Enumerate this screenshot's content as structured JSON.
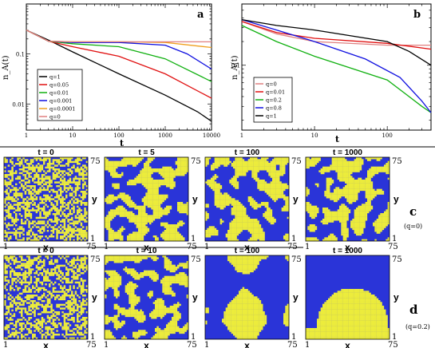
{
  "chart_data": [
    {
      "id": "a",
      "type": "line",
      "panel_letter": "a",
      "xlabel": "t",
      "ylabel": "n_A(t)",
      "xscale": "log",
      "yscale": "log",
      "xlim": [
        1,
        10000
      ],
      "ylim": [
        0.003,
        1
      ],
      "x_ticks": [
        {
          "v": 1,
          "label": "1"
        },
        {
          "v": 10,
          "label": "10"
        },
        {
          "v": 100,
          "label": "100"
        },
        {
          "v": 1000,
          "label": "1000"
        },
        {
          "v": 10000,
          "label": "10000"
        }
      ],
      "y_ticks": [
        {
          "v": 0.01,
          "label": "0.01"
        },
        {
          "v": 0.1,
          "label": "0.1"
        }
      ],
      "legend_position": "bottom-left",
      "series": [
        {
          "name": "q=1",
          "color": "#000000",
          "points": [
            [
              1,
              0.3
            ],
            [
              3,
              0.19
            ],
            [
              10,
              0.11
            ],
            [
              100,
              0.04
            ],
            [
              1000,
              0.015
            ],
            [
              5000,
              0.007
            ],
            [
              10000,
              0.0045
            ]
          ]
        },
        {
          "name": "q=0.05",
          "color": "#e01010",
          "points": [
            [
              1,
              0.3
            ],
            [
              3,
              0.18
            ],
            [
              10,
              0.14
            ],
            [
              100,
              0.09
            ],
            [
              1000,
              0.04
            ],
            [
              10000,
              0.013
            ]
          ]
        },
        {
          "name": "q=0.01",
          "color": "#10b010",
          "points": [
            [
              1,
              0.3
            ],
            [
              3,
              0.18
            ],
            [
              10,
              0.16
            ],
            [
              100,
              0.14
            ],
            [
              1000,
              0.08
            ],
            [
              10000,
              0.028
            ]
          ]
        },
        {
          "name": "q=0.001",
          "color": "#1010e0",
          "points": [
            [
              1,
              0.3
            ],
            [
              3,
              0.18
            ],
            [
              10,
              0.17
            ],
            [
              100,
              0.17
            ],
            [
              1000,
              0.15
            ],
            [
              3000,
              0.1
            ],
            [
              10000,
              0.05
            ]
          ]
        },
        {
          "name": "q=0.0001",
          "color": "#f0a020",
          "points": [
            [
              1,
              0.3
            ],
            [
              3,
              0.18
            ],
            [
              10,
              0.175
            ],
            [
              100,
              0.175
            ],
            [
              1000,
              0.17
            ],
            [
              10000,
              0.135
            ]
          ]
        },
        {
          "name": "q=0",
          "color": "#e08080",
          "points": [
            [
              1,
              0.3
            ],
            [
              3,
              0.18
            ],
            [
              10,
              0.175
            ],
            [
              100,
              0.175
            ],
            [
              1000,
              0.175
            ],
            [
              10000,
              0.175
            ]
          ]
        }
      ]
    },
    {
      "id": "b",
      "type": "line",
      "panel_letter": "b",
      "xlabel": "t",
      "ylabel": "n_A(t)",
      "xscale": "log",
      "yscale": "log",
      "xlim": [
        1,
        400
      ],
      "ylim": [
        0.015,
        0.6
      ],
      "x_ticks": [
        {
          "v": 1,
          "label": "1"
        },
        {
          "v": 10,
          "label": "10"
        },
        {
          "v": 100,
          "label": "100"
        }
      ],
      "y_ticks": [
        {
          "v": 0.1,
          "label": "0.1"
        }
      ],
      "legend_position": "bottom-left",
      "series": [
        {
          "name": "q=0",
          "color": "#e08080",
          "points": [
            [
              1,
              0.36
            ],
            [
              3,
              0.25
            ],
            [
              10,
              0.2
            ],
            [
              100,
              0.18
            ],
            [
              400,
              0.18
            ]
          ]
        },
        {
          "name": "q=0.01",
          "color": "#e01010",
          "points": [
            [
              1,
              0.36
            ],
            [
              3,
              0.26
            ],
            [
              10,
              0.22
            ],
            [
              100,
              0.19
            ],
            [
              400,
              0.16
            ]
          ]
        },
        {
          "name": "q=0.2",
          "color": "#10b010",
          "points": [
            [
              1,
              0.32
            ],
            [
              3,
              0.2
            ],
            [
              10,
              0.13
            ],
            [
              100,
              0.065
            ],
            [
              300,
              0.03
            ],
            [
              400,
              0.025
            ]
          ]
        },
        {
          "name": "q=0.8",
          "color": "#1010e0",
          "points": [
            [
              1,
              0.38
            ],
            [
              3,
              0.28
            ],
            [
              10,
              0.2
            ],
            [
              50,
              0.12
            ],
            [
              150,
              0.07
            ],
            [
              300,
              0.035
            ],
            [
              400,
              0.025
            ]
          ]
        },
        {
          "name": "q=1",
          "color": "#000000",
          "points": [
            [
              1,
              0.38
            ],
            [
              3,
              0.32
            ],
            [
              10,
              0.28
            ],
            [
              100,
              0.2
            ],
            [
              200,
              0.15
            ],
            [
              400,
              0.1
            ]
          ]
        }
      ]
    }
  ],
  "snapshots": {
    "colors": {
      "yellow": "#ecec3c",
      "blue": "#2a34d8"
    },
    "rows": [
      {
        "row_letter": "c",
        "row_note": "(q=0)",
        "axis_labels": {
          "x": "x",
          "y": "y",
          "x_min": "1",
          "x_max": "75",
          "y_min": "1",
          "y_max": "75"
        },
        "frames": [
          {
            "title": "t = 0",
            "pattern": "random"
          },
          {
            "title": "t = 5",
            "pattern": "coarse"
          },
          {
            "title": "t = 100",
            "pattern": "coarse"
          },
          {
            "title": "t = 1000",
            "pattern": "coarse"
          }
        ]
      },
      {
        "row_letter": "d",
        "row_note": "(q=0.2)",
        "axis_labels": {
          "x": "x",
          "y": "y",
          "x_min": "1",
          "x_max": "75",
          "y_min": "1",
          "y_max": "75"
        },
        "frames": [
          {
            "title": "t = 0",
            "pattern": "random"
          },
          {
            "title": "t = 10",
            "pattern": "coarse"
          },
          {
            "title": "t = 100",
            "pattern": "blobs"
          },
          {
            "title": "t = 1000",
            "pattern": "two-domain"
          }
        ]
      }
    ]
  }
}
